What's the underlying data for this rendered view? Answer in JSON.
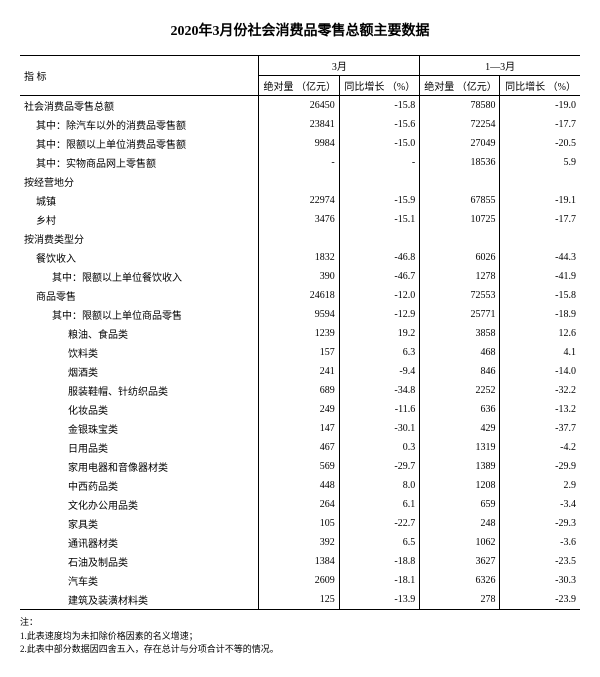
{
  "title": "2020年3月份社会消费品零售总额主要数据",
  "headers": {
    "indicator": "指 标",
    "period1": "3月",
    "period2": "1—3月",
    "abs": "绝对量\n（亿元）",
    "yoy": "同比增长\n（%）"
  },
  "rows": [
    {
      "l": "社会消费品零售总额",
      "i": 0,
      "a1": "26450",
      "b1": "-15.8",
      "a2": "78580",
      "b2": "-19.0"
    },
    {
      "l": "其中：除汽车以外的消费品零售额",
      "i": 1,
      "a1": "23841",
      "b1": "-15.6",
      "a2": "72254",
      "b2": "-17.7"
    },
    {
      "l": "其中：限额以上单位消费品零售额",
      "i": 1,
      "a1": "9984",
      "b1": "-15.0",
      "a2": "27049",
      "b2": "-20.5"
    },
    {
      "l": "其中：实物商品网上零售额",
      "i": 1,
      "a1": "-",
      "b1": "-",
      "a2": "18536",
      "b2": "5.9"
    },
    {
      "l": "按经营地分",
      "i": 0,
      "sec": true
    },
    {
      "l": "城镇",
      "i": 1,
      "a1": "22974",
      "b1": "-15.9",
      "a2": "67855",
      "b2": "-19.1"
    },
    {
      "l": "乡村",
      "i": 1,
      "a1": "3476",
      "b1": "-15.1",
      "a2": "10725",
      "b2": "-17.7"
    },
    {
      "l": "按消费类型分",
      "i": 0,
      "sec": true
    },
    {
      "l": "餐饮收入",
      "i": 1,
      "a1": "1832",
      "b1": "-46.8",
      "a2": "6026",
      "b2": "-44.3"
    },
    {
      "l": "其中：限额以上单位餐饮收入",
      "i": 2,
      "a1": "390",
      "b1": "-46.7",
      "a2": "1278",
      "b2": "-41.9"
    },
    {
      "l": "商品零售",
      "i": 1,
      "a1": "24618",
      "b1": "-12.0",
      "a2": "72553",
      "b2": "-15.8"
    },
    {
      "l": "其中：限额以上单位商品零售",
      "i": 2,
      "a1": "9594",
      "b1": "-12.9",
      "a2": "25771",
      "b2": "-18.9"
    },
    {
      "l": "粮油、食品类",
      "i": 3,
      "a1": "1239",
      "b1": "19.2",
      "a2": "3858",
      "b2": "12.6"
    },
    {
      "l": "饮料类",
      "i": 3,
      "a1": "157",
      "b1": "6.3",
      "a2": "468",
      "b2": "4.1"
    },
    {
      "l": "烟酒类",
      "i": 3,
      "a1": "241",
      "b1": "-9.4",
      "a2": "846",
      "b2": "-14.0"
    },
    {
      "l": "服装鞋帽、针纺织品类",
      "i": 3,
      "a1": "689",
      "b1": "-34.8",
      "a2": "2252",
      "b2": "-32.2"
    },
    {
      "l": "化妆品类",
      "i": 3,
      "a1": "249",
      "b1": "-11.6",
      "a2": "636",
      "b2": "-13.2"
    },
    {
      "l": "金银珠宝类",
      "i": 3,
      "a1": "147",
      "b1": "-30.1",
      "a2": "429",
      "b2": "-37.7"
    },
    {
      "l": "日用品类",
      "i": 3,
      "a1": "467",
      "b1": "0.3",
      "a2": "1319",
      "b2": "-4.2"
    },
    {
      "l": "家用电器和音像器材类",
      "i": 3,
      "a1": "569",
      "b1": "-29.7",
      "a2": "1389",
      "b2": "-29.9"
    },
    {
      "l": "中西药品类",
      "i": 3,
      "a1": "448",
      "b1": "8.0",
      "a2": "1208",
      "b2": "2.9"
    },
    {
      "l": "文化办公用品类",
      "i": 3,
      "a1": "264",
      "b1": "6.1",
      "a2": "659",
      "b2": "-3.4"
    },
    {
      "l": "家具类",
      "i": 3,
      "a1": "105",
      "b1": "-22.7",
      "a2": "248",
      "b2": "-29.3"
    },
    {
      "l": "通讯器材类",
      "i": 3,
      "a1": "392",
      "b1": "6.5",
      "a2": "1062",
      "b2": "-3.6"
    },
    {
      "l": "石油及制品类",
      "i": 3,
      "a1": "1384",
      "b1": "-18.8",
      "a2": "3627",
      "b2": "-23.5"
    },
    {
      "l": "汽车类",
      "i": 3,
      "a1": "2609",
      "b1": "-18.1",
      "a2": "6326",
      "b2": "-30.3"
    },
    {
      "l": "建筑及装潢材料类",
      "i": 3,
      "a1": "125",
      "b1": "-13.9",
      "a2": "278",
      "b2": "-23.9"
    }
  ],
  "notes": {
    "label": "注：",
    "n1": "1.此表速度均为未扣除价格因素的名义增速；",
    "n2": "2.此表中部分数据因四舍五入，存在总计与分项合计不等的情况。"
  }
}
